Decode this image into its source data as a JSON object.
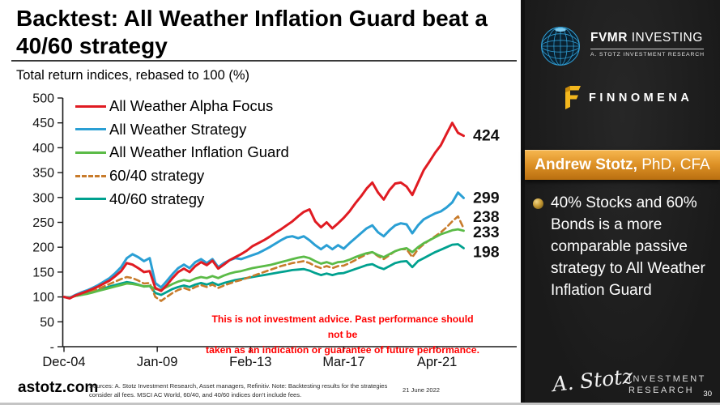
{
  "slide": {
    "title_line1": "Backtest: All Weather Inflation Guard beat a",
    "title_line2": "40/60 strategy",
    "subtitle": "Total return indices, rebased to 100 (%)",
    "disclaimer_line1": "This is not investment advice. Past performance should not be",
    "disclaimer_line2": "taken as an indication or guarantee of future performance.",
    "footer": {
      "site": "astotz.com",
      "sources": "Sources: A. Stotz Investment Research, Asset managers, Refinitiv. Note: Backtesting results for the strategies consider all fees. MSCI AC World, 60/40, and 40/60 indices don't include fees.",
      "date": "21 June 2022"
    }
  },
  "chart_data": {
    "type": "line",
    "title": "Total return indices, rebased to 100 (%)",
    "grid": false,
    "legend_position": "top-left inside plot",
    "ylim": [
      0,
      500
    ],
    "y_ticks": [
      500,
      450,
      400,
      350,
      300,
      250,
      200,
      150,
      100,
      50,
      0
    ],
    "y_tick_labels": [
      "500",
      "450",
      "400",
      "350",
      "300",
      "250",
      "200",
      "150",
      "100",
      "50",
      "-"
    ],
    "x_tick_labels": [
      "Dec-04",
      "Jan-09",
      "Feb-13",
      "Mar-17",
      "Apr-21"
    ],
    "x_tick_months": [
      0,
      49,
      98,
      147,
      196
    ],
    "x_range_months": [
      0,
      210
    ],
    "months_since_dec_2004": [
      0,
      3,
      6,
      9,
      12,
      15,
      18,
      21,
      24,
      27,
      30,
      33,
      36,
      39,
      42,
      45,
      48,
      51,
      54,
      57,
      60,
      63,
      66,
      69,
      72,
      75,
      78,
      81,
      84,
      87,
      90,
      93,
      96,
      99,
      102,
      105,
      108,
      111,
      114,
      117,
      120,
      123,
      126,
      129,
      132,
      135,
      138,
      141,
      144,
      147,
      150,
      153,
      156,
      159,
      162,
      165,
      168,
      171,
      174,
      177,
      180,
      183,
      186,
      189,
      192,
      195,
      198,
      201,
      204,
      207,
      210
    ],
    "series": [
      {
        "name": "All Weather Alpha Focus",
        "color": "#e01b22",
        "dash": "solid",
        "width": 3,
        "end_label": "424",
        "end_value": 424,
        "label_dy": 0,
        "values": [
          100,
          97,
          103,
          107,
          111,
          116,
          121,
          127,
          133,
          142,
          152,
          168,
          165,
          158,
          150,
          152,
          118,
          112,
          124,
          138,
          150,
          157,
          150,
          162,
          170,
          164,
          173,
          157,
          165,
          174,
          180,
          186,
          193,
          202,
          208,
          214,
          221,
          229,
          236,
          244,
          252,
          262,
          271,
          276,
          252,
          240,
          250,
          238,
          248,
          259,
          272,
          288,
          302,
          318,
          330,
          310,
          296,
          315,
          328,
          330,
          322,
          305,
          330,
          355,
          372,
          390,
          405,
          428,
          450,
          430,
          424
        ]
      },
      {
        "name": "All Weather Strategy",
        "color": "#2a9fd4",
        "dash": "solid",
        "width": 3,
        "end_label": "299",
        "end_value": 299,
        "label_dy": 0,
        "values": [
          100,
          98,
          104,
          109,
          113,
          118,
          124,
          131,
          138,
          148,
          160,
          178,
          186,
          180,
          172,
          178,
          128,
          119,
          132,
          146,
          158,
          165,
          158,
          170,
          176,
          168,
          176,
          160,
          168,
          174,
          178,
          176,
          180,
          184,
          188,
          194,
          200,
          207,
          214,
          220,
          222,
          218,
          222,
          214,
          204,
          196,
          204,
          196,
          204,
          197,
          208,
          218,
          228,
          238,
          244,
          230,
          222,
          234,
          244,
          248,
          246,
          228,
          244,
          256,
          262,
          268,
          272,
          280,
          290,
          310,
          299
        ]
      },
      {
        "name": "All Weather Inflation Guard",
        "color": "#5bbb47",
        "dash": "solid",
        "width": 2.8,
        "end_label": "233",
        "end_value": 233,
        "label_dy": 2,
        "values": [
          100,
          99,
          102,
          104,
          106,
          109,
          112,
          115,
          118,
          121,
          124,
          127,
          126,
          124,
          121,
          122,
          116,
          114,
          120,
          126,
          131,
          134,
          132,
          137,
          140,
          138,
          142,
          138,
          143,
          147,
          150,
          152,
          155,
          158,
          160,
          162,
          164,
          167,
          170,
          173,
          176,
          179,
          181,
          178,
          172,
          167,
          170,
          166,
          170,
          171,
          175,
          180,
          184,
          188,
          190,
          184,
          180,
          186,
          192,
          196,
          198,
          190,
          200,
          208,
          214,
          220,
          226,
          230,
          234,
          236,
          233
        ]
      },
      {
        "name": "60/40 strategy",
        "color": "#c87b2b",
        "dash": "dashed",
        "width": 2.6,
        "end_label": "238",
        "end_value": 238,
        "label_dy": -14,
        "values": [
          100,
          98,
          102,
          105,
          108,
          112,
          116,
          121,
          126,
          131,
          136,
          140,
          138,
          133,
          127,
          128,
          100,
          92,
          100,
          108,
          114,
          118,
          114,
          120,
          124,
          120,
          125,
          118,
          123,
          127,
          131,
          134,
          138,
          142,
          146,
          150,
          154,
          158,
          162,
          165,
          168,
          170,
          172,
          168,
          162,
          158,
          162,
          158,
          162,
          163,
          168,
          174,
          180,
          186,
          190,
          182,
          176,
          184,
          192,
          196,
          196,
          180,
          196,
          206,
          214,
          222,
          230,
          240,
          252,
          262,
          238
        ]
      },
      {
        "name": "40/60 strategy",
        "color": "#00a18f",
        "dash": "solid",
        "width": 2.8,
        "end_label": "198",
        "end_value": 198,
        "label_dy": 5,
        "values": [
          100,
          99,
          102,
          104,
          107,
          110,
          113,
          117,
          121,
          124,
          127,
          130,
          128,
          125,
          121,
          122,
          108,
          104,
          110,
          116,
          120,
          123,
          120,
          125,
          128,
          125,
          129,
          124,
          128,
          131,
          134,
          136,
          138,
          140,
          142,
          144,
          146,
          148,
          150,
          152,
          154,
          155,
          156,
          153,
          148,
          144,
          147,
          144,
          147,
          148,
          152,
          156,
          160,
          164,
          166,
          160,
          156,
          162,
          168,
          171,
          172,
          160,
          172,
          178,
          184,
          190,
          195,
          200,
          205,
          206,
          198
        ]
      }
    ]
  },
  "sidebar": {
    "fvmr": {
      "brand_bold": "FVMR",
      "brand_light": "INVESTING",
      "subline": "A. STOTZ INVESTMENT RESEARCH"
    },
    "finnomena": {
      "name": "FINNOMENA"
    },
    "author": {
      "name": "Andrew Stotz,",
      "credentials": " PhD, CFA"
    },
    "bullet_text": "40% Stocks and 60% Bonds is a more comparable passive strategy to All Weather Inflation Guard",
    "logo": {
      "signature": "A. Stotz",
      "word1": "INVESTMENT",
      "word2": "RESEARCH"
    },
    "page_number": "30"
  }
}
